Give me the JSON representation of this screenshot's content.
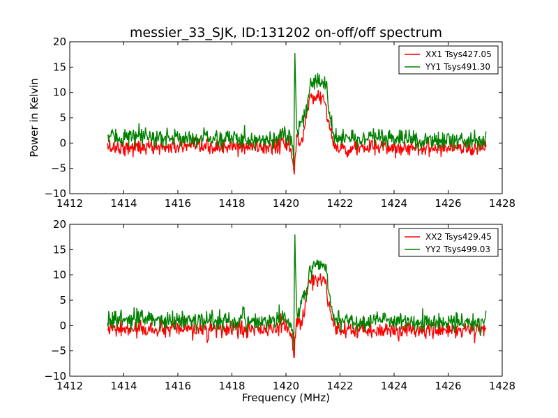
{
  "chart_data": {
    "type": "line",
    "title": "messier_33_SJK, ID:131202 on-off/off spectrum",
    "xlabel": "Frequency (MHz)",
    "ylabel": "Power in Kelvin",
    "xlim": [
      1412,
      1428
    ],
    "xticks": [
      1412,
      1414,
      1416,
      1418,
      1420,
      1422,
      1424,
      1426,
      1428
    ],
    "x_range": [
      1413.4,
      1427.4
    ],
    "legend_position": "top-right",
    "grid": false,
    "panels": [
      {
        "ylim": [
          -10,
          20
        ],
        "yticks": [
          -10,
          -5,
          0,
          5,
          10,
          15,
          20
        ],
        "show_ylabel": true,
        "show_xlabel": false,
        "series": [
          {
            "name": "XX1 Tsys427.05",
            "color": "#ff0000",
            "profile": [
              [
                1413.4,
                -0.8
              ],
              [
                1419.6,
                -0.8
              ],
              [
                1419.9,
                0.5
              ],
              [
                1420.15,
                -1.0
              ],
              [
                1420.3,
                -5.5
              ],
              [
                1420.4,
                1.5
              ],
              [
                1420.55,
                -0.5
              ],
              [
                1420.7,
                3.5
              ],
              [
                1420.85,
                8.5
              ],
              [
                1421.2,
                9.5
              ],
              [
                1421.45,
                8.5
              ],
              [
                1421.55,
                5.0
              ],
              [
                1421.7,
                0.5
              ],
              [
                1421.85,
                -1.0
              ],
              [
                1427.4,
                -0.8
              ]
            ],
            "noise_sigma": 0.8,
            "extremes": {
              "max": 10.5,
              "min": -6.2
            }
          },
          {
            "name": "YY1 Tsys491.30",
            "color": "#008000",
            "profile": [
              [
                1413.4,
                1.2
              ],
              [
                1419.6,
                0.8
              ],
              [
                1419.95,
                1.8
              ],
              [
                1420.15,
                0.5
              ],
              [
                1420.28,
                -2.0
              ],
              [
                1420.33,
                17.8
              ],
              [
                1420.4,
                0.5
              ],
              [
                1420.55,
                4.5
              ],
              [
                1420.75,
                6.0
              ],
              [
                1420.9,
                11.5
              ],
              [
                1421.25,
                12.5
              ],
              [
                1421.5,
                11.5
              ],
              [
                1421.6,
                6.0
              ],
              [
                1421.75,
                2.0
              ],
              [
                1421.9,
                1.0
              ],
              [
                1427.4,
                0.5
              ]
            ],
            "noise_sigma": 0.9,
            "extremes": {
              "max": 17.8,
              "min": -4.5
            }
          }
        ]
      },
      {
        "ylim": [
          -10,
          20
        ],
        "yticks": [
          -10,
          -5,
          0,
          5,
          10,
          15,
          20
        ],
        "show_ylabel": false,
        "show_xlabel": true,
        "series": [
          {
            "name": "XX2 Tsys429.45",
            "color": "#ff0000",
            "profile": [
              [
                1413.4,
                -0.8
              ],
              [
                1419.6,
                -0.8
              ],
              [
                1419.9,
                0.5
              ],
              [
                1420.15,
                -1.0
              ],
              [
                1420.3,
                -5.8
              ],
              [
                1420.4,
                1.5
              ],
              [
                1420.55,
                -0.5
              ],
              [
                1420.7,
                3.5
              ],
              [
                1420.85,
                8.5
              ],
              [
                1421.2,
                9.5
              ],
              [
                1421.45,
                8.5
              ],
              [
                1421.55,
                5.0
              ],
              [
                1421.7,
                0.5
              ],
              [
                1421.85,
                -1.0
              ],
              [
                1427.4,
                -0.8
              ]
            ],
            "noise_sigma": 0.8,
            "extremes": {
              "max": 10.3,
              "min": -6.3
            }
          },
          {
            "name": "YY2 Tsys499.03",
            "color": "#008000",
            "profile": [
              [
                1413.4,
                1.2
              ],
              [
                1419.6,
                0.8
              ],
              [
                1419.95,
                1.8
              ],
              [
                1420.15,
                0.5
              ],
              [
                1420.28,
                -2.0
              ],
              [
                1420.33,
                18.0
              ],
              [
                1420.4,
                0.5
              ],
              [
                1420.55,
                4.5
              ],
              [
                1420.75,
                6.0
              ],
              [
                1420.9,
                11.5
              ],
              [
                1421.25,
                12.5
              ],
              [
                1421.5,
                11.5
              ],
              [
                1421.6,
                6.0
              ],
              [
                1421.75,
                2.0
              ],
              [
                1421.9,
                1.0
              ],
              [
                1427.4,
                0.5
              ]
            ],
            "noise_sigma": 0.9,
            "extremes": {
              "max": 18.0,
              "min": -4.8
            }
          }
        ]
      }
    ]
  }
}
